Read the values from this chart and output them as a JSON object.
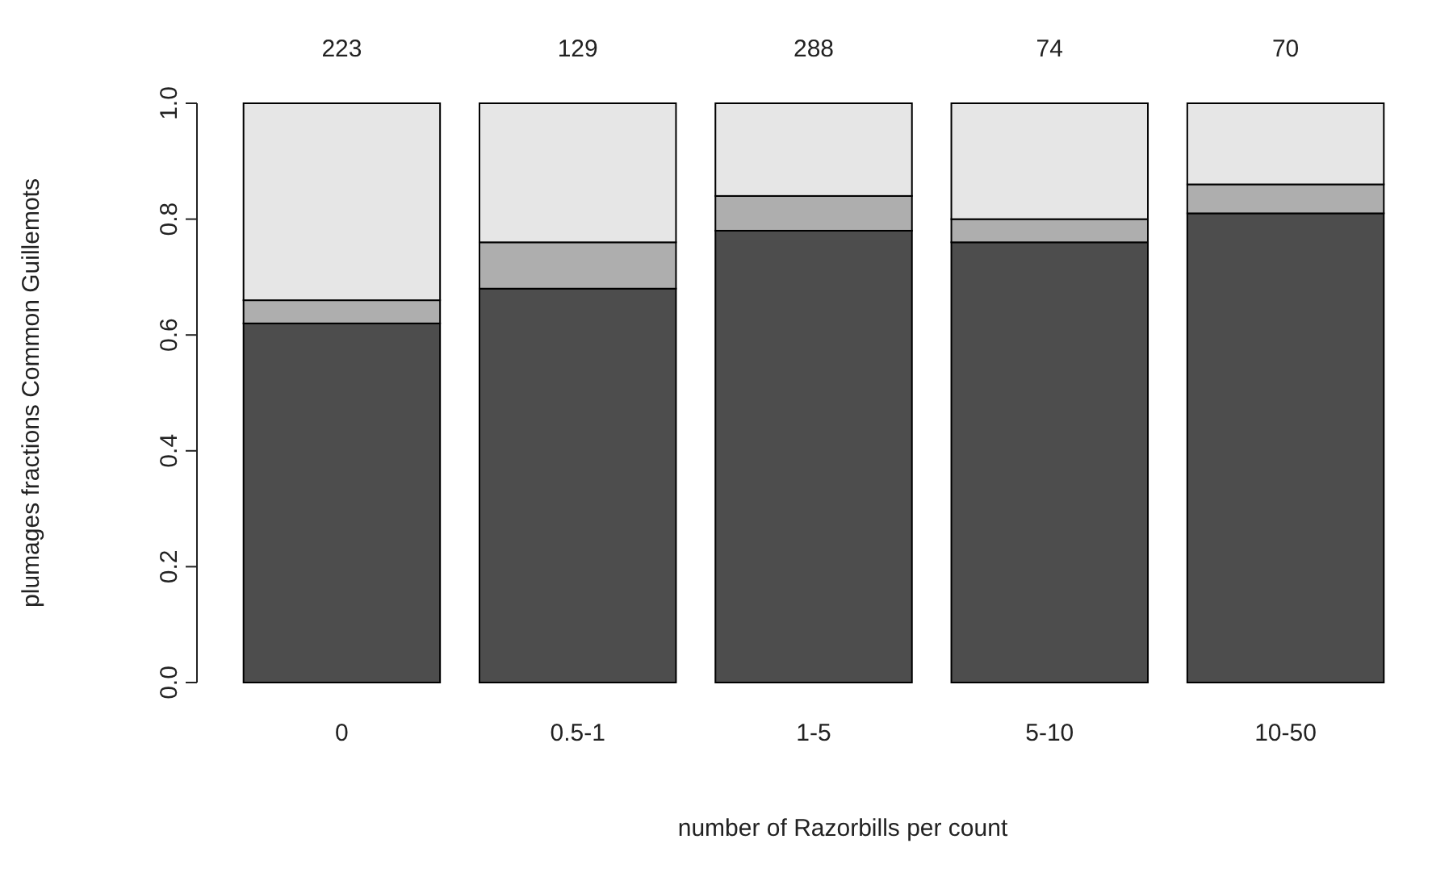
{
  "chart_data": {
    "type": "bar",
    "stacked": true,
    "xlabel": "number of Razorbills per count",
    "ylabel": "plumages fractions Common Guillemots",
    "categories": [
      "0",
      "0.5-1",
      "1-5",
      "5-10",
      "10-50"
    ],
    "series": [
      {
        "color": "#4d4d4d",
        "values": [
          0.62,
          0.68,
          0.78,
          0.76,
          0.81
        ]
      },
      {
        "color": "#aeaeae",
        "values": [
          0.04,
          0.08,
          0.06,
          0.04,
          0.05
        ]
      },
      {
        "color": "#e6e6e6",
        "values": [
          0.34,
          0.24,
          0.16,
          0.2,
          0.14
        ]
      }
    ],
    "ylim": [
      0,
      1
    ],
    "yticks": [
      {
        "value": 0,
        "label": "0.0"
      },
      0.2,
      0.4,
      0.6,
      0.8,
      {
        "value": 1,
        "label": "1.0"
      }
    ],
    "annotations": [
      "223",
      "129",
      "288",
      "74",
      "70"
    ]
  }
}
